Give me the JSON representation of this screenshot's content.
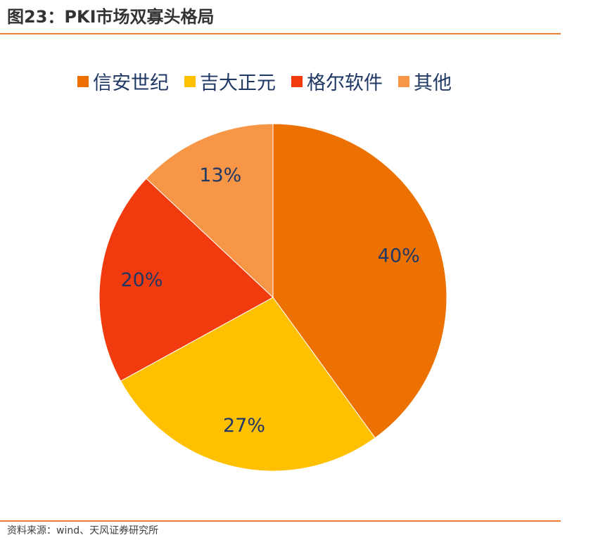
{
  "header": {
    "title": "图23：PKI市场双寡头格局"
  },
  "footer": {
    "source": "资料来源：wind、天风证券研究所"
  },
  "chart_data": {
    "type": "pie",
    "title": "图23：PKI市场双寡头格局",
    "legend_position": "top",
    "categories": [
      "信安世纪",
      "吉大正元",
      "格尔软件",
      "其他"
    ],
    "values": [
      40,
      27,
      20,
      13
    ],
    "labels": [
      "40%",
      "27%",
      "20%",
      "13%"
    ],
    "colors": [
      "#ED7100",
      "#FFC000",
      "#F23A0F",
      "#F79646"
    ]
  }
}
